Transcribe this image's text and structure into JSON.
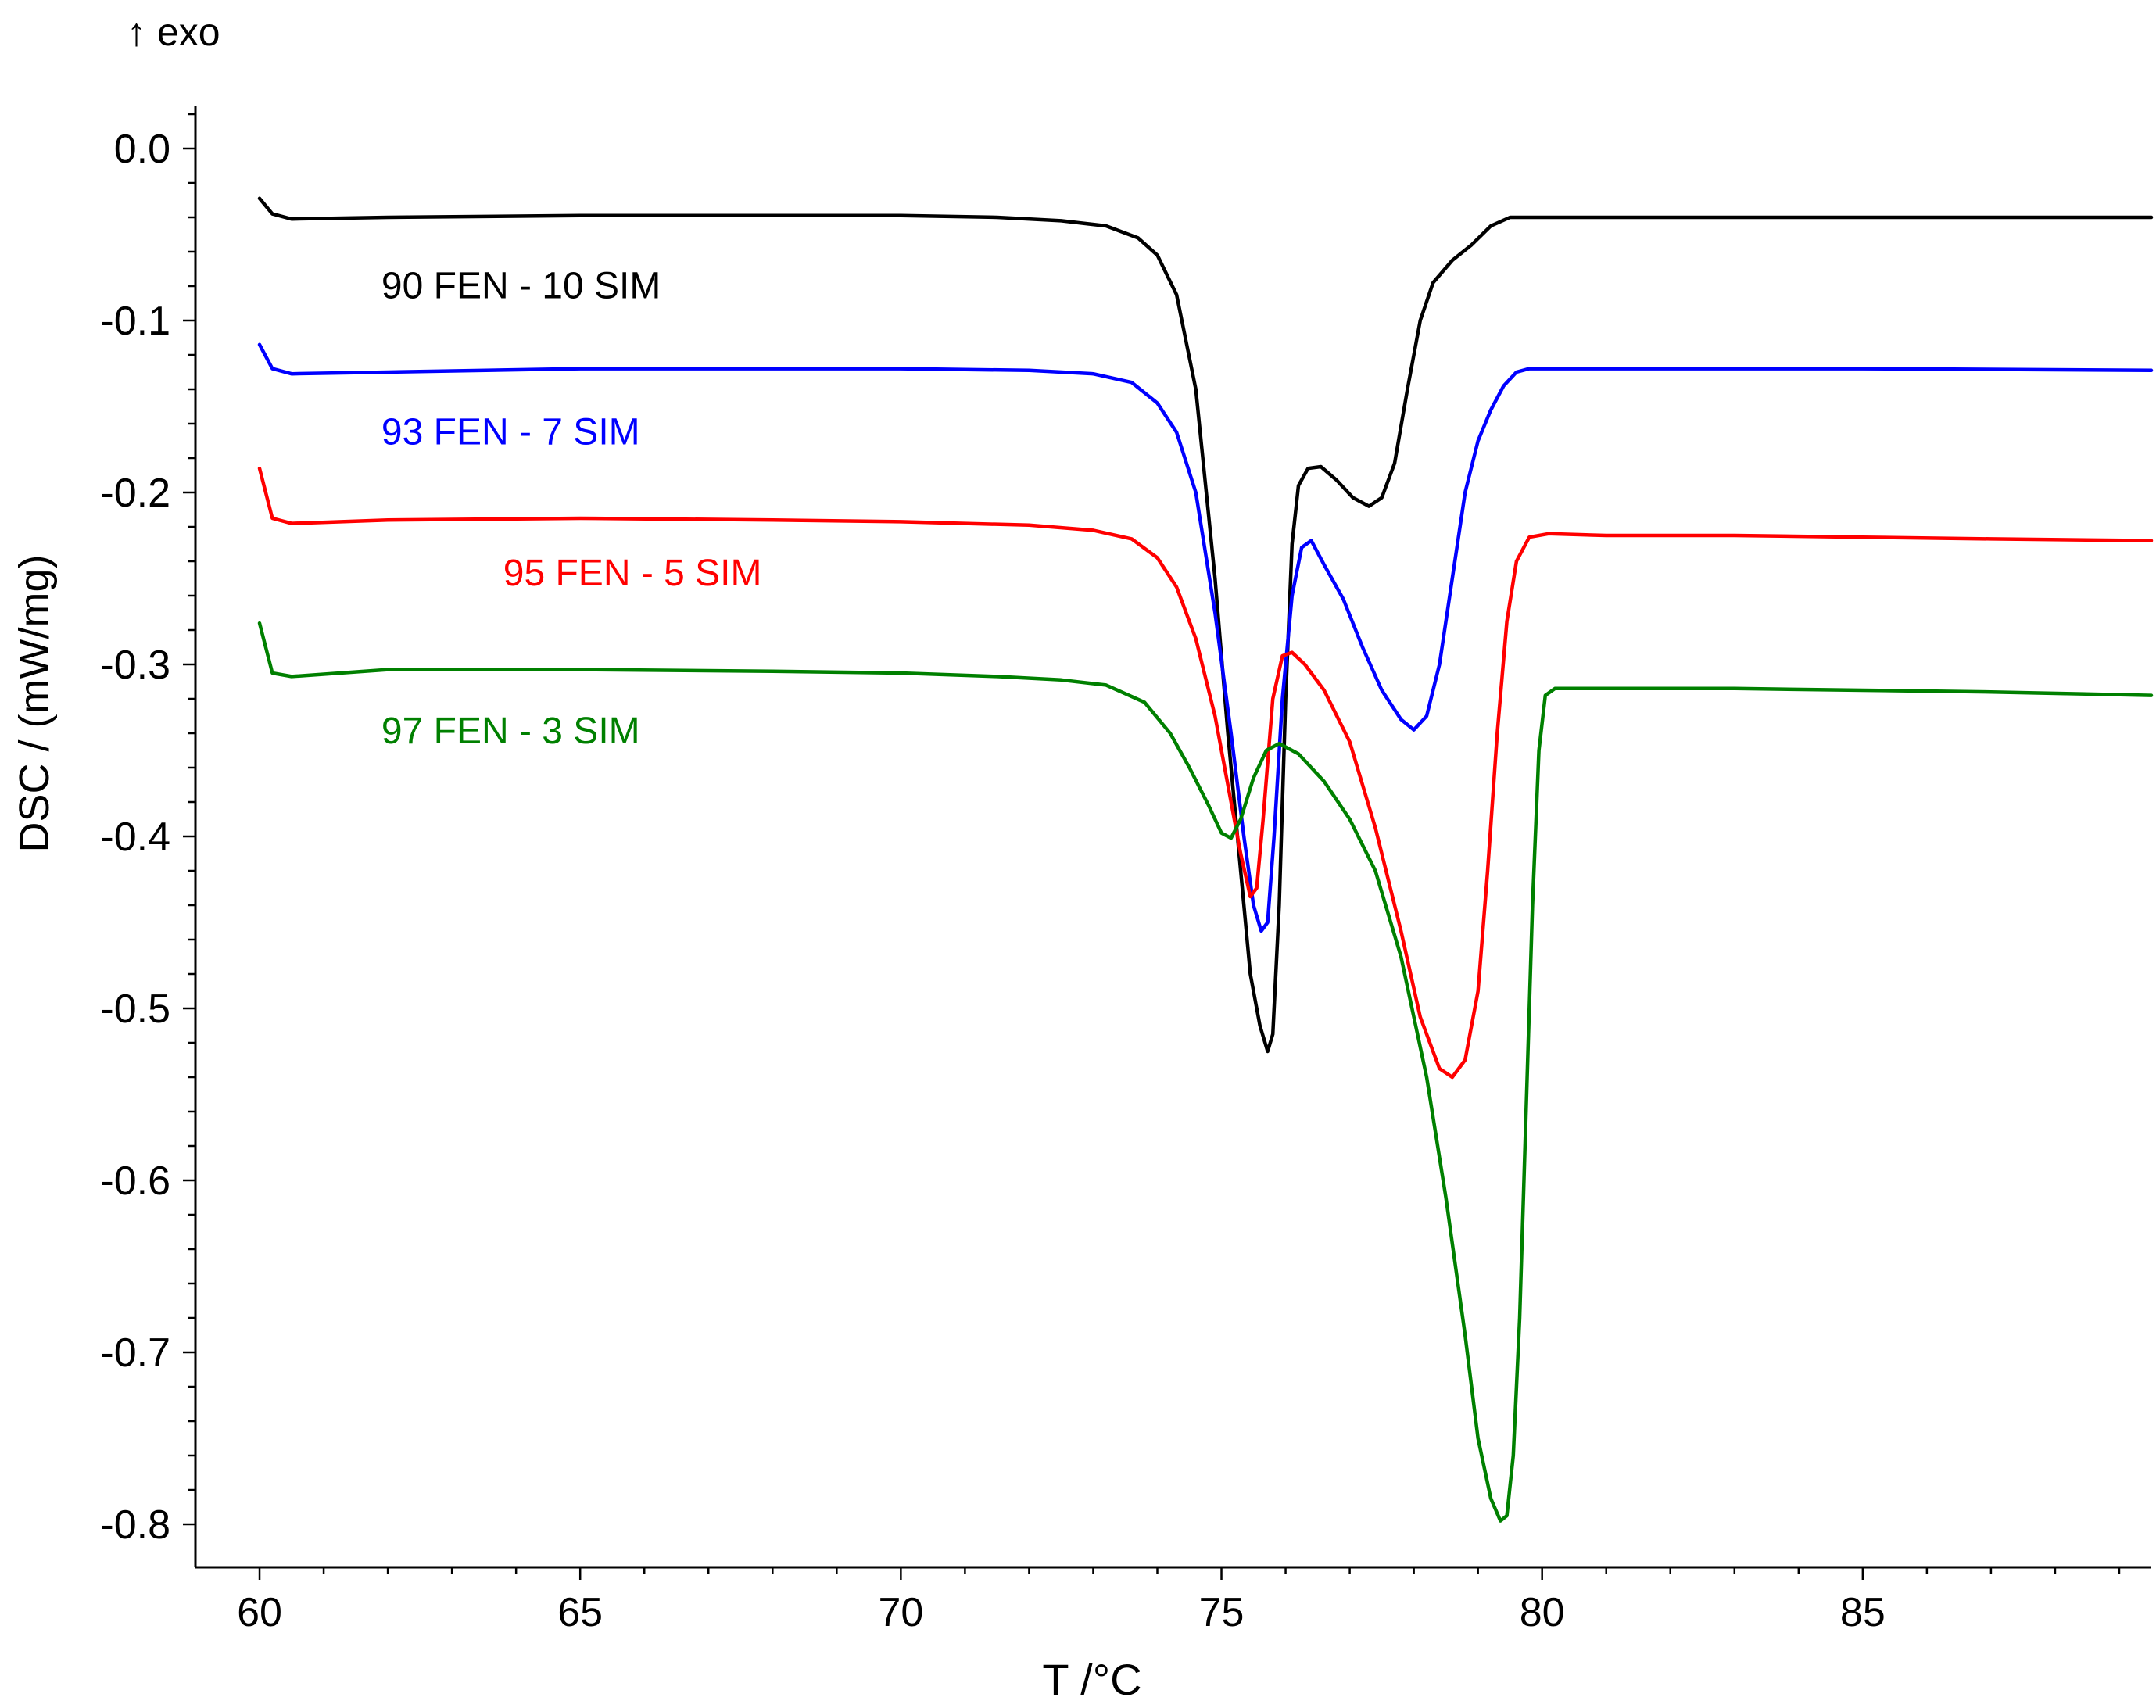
{
  "chart_data": {
    "type": "line",
    "title": "",
    "exo_label": "↑ exo",
    "xlabel": "T /°C",
    "ylabel": "DSC / (mW/mg)",
    "xlim": [
      59.0,
      89.5
    ],
    "ylim": [
      -0.825,
      0.025
    ],
    "x_ticks": [
      60,
      65,
      70,
      75,
      80,
      85
    ],
    "x_tick_labels": [
      "60",
      "65",
      "70",
      "75",
      "80",
      "85"
    ],
    "y_ticks": [
      0.0,
      -0.1,
      -0.2,
      -0.3,
      -0.4,
      -0.5,
      -0.6,
      -0.7,
      -0.8
    ],
    "y_tick_labels": [
      "0.0",
      "-0.1",
      "-0.2",
      "-0.3",
      "-0.4",
      "-0.5",
      "-0.6",
      "-0.7",
      "-0.8"
    ],
    "grid": false,
    "series": [
      {
        "name": "90 FEN - 10 SIM",
        "color": "#000000",
        "label_at": [
          61.9,
          -0.087
        ],
        "x": [
          60.0,
          60.2,
          60.5,
          62,
          65,
          68,
          70,
          71.5,
          72.5,
          73.2,
          73.7,
          74.0,
          74.3,
          74.6,
          74.9,
          75.1,
          75.3,
          75.45,
          75.6,
          75.72,
          75.8,
          75.9,
          76.0,
          76.1,
          76.2,
          76.35,
          76.55,
          76.8,
          77.05,
          77.3,
          77.5,
          77.7,
          77.9,
          78.1,
          78.3,
          78.6,
          78.9,
          79.2,
          79.5,
          80,
          82,
          85,
          89.5
        ],
        "y": [
          -0.029,
          -0.038,
          -0.041,
          -0.04,
          -0.039,
          -0.039,
          -0.039,
          -0.04,
          -0.042,
          -0.045,
          -0.052,
          -0.062,
          -0.085,
          -0.14,
          -0.25,
          -0.34,
          -0.42,
          -0.48,
          -0.51,
          -0.525,
          -0.515,
          -0.44,
          -0.32,
          -0.23,
          -0.196,
          -0.186,
          -0.185,
          -0.193,
          -0.203,
          -0.208,
          -0.203,
          -0.183,
          -0.14,
          -0.1,
          -0.078,
          -0.065,
          -0.056,
          -0.045,
          -0.04,
          -0.04,
          -0.04,
          -0.04,
          -0.04
        ]
      },
      {
        "name": "93 FEN - 7 SIM",
        "color": "#0000ff",
        "label_at": [
          61.9,
          -0.172
        ],
        "x": [
          60.0,
          60.2,
          60.5,
          62,
          65,
          68,
          70,
          72,
          73.0,
          73.6,
          74.0,
          74.3,
          74.6,
          74.9,
          75.15,
          75.35,
          75.5,
          75.62,
          75.72,
          75.82,
          75.95,
          76.1,
          76.25,
          76.4,
          76.6,
          76.9,
          77.2,
          77.5,
          77.8,
          78.0,
          78.2,
          78.4,
          78.6,
          78.8,
          79.0,
          79.2,
          79.4,
          79.6,
          79.8,
          80.2,
          82,
          85,
          89.5
        ],
        "y": [
          -0.114,
          -0.128,
          -0.131,
          -0.13,
          -0.128,
          -0.128,
          -0.128,
          -0.129,
          -0.131,
          -0.136,
          -0.148,
          -0.165,
          -0.2,
          -0.27,
          -0.34,
          -0.4,
          -0.44,
          -0.455,
          -0.45,
          -0.4,
          -0.32,
          -0.26,
          -0.232,
          -0.228,
          -0.242,
          -0.262,
          -0.29,
          -0.315,
          -0.332,
          -0.338,
          -0.33,
          -0.3,
          -0.25,
          -0.2,
          -0.17,
          -0.152,
          -0.138,
          -0.13,
          -0.128,
          -0.128,
          -0.128,
          -0.128,
          -0.129
        ]
      },
      {
        "name": "95 FEN - 5 SIM",
        "color": "#ff0000",
        "label_at": [
          63.8,
          -0.254
        ],
        "x": [
          60.0,
          60.2,
          60.5,
          62,
          65,
          68,
          70,
          72,
          73.0,
          73.6,
          74.0,
          74.3,
          74.6,
          74.9,
          75.1,
          75.3,
          75.45,
          75.55,
          75.65,
          75.8,
          75.95,
          76.1,
          76.3,
          76.6,
          77.0,
          77.4,
          77.8,
          78.1,
          78.4,
          78.6,
          78.8,
          79.0,
          79.15,
          79.3,
          79.45,
          79.6,
          79.8,
          80.1,
          81,
          83,
          85,
          87,
          89.5
        ],
        "y": [
          -0.186,
          -0.215,
          -0.218,
          -0.216,
          -0.215,
          -0.216,
          -0.217,
          -0.219,
          -0.222,
          -0.227,
          -0.238,
          -0.255,
          -0.285,
          -0.33,
          -0.37,
          -0.41,
          -0.435,
          -0.43,
          -0.39,
          -0.32,
          -0.295,
          -0.293,
          -0.3,
          -0.315,
          -0.345,
          -0.395,
          -0.455,
          -0.505,
          -0.535,
          -0.54,
          -0.53,
          -0.49,
          -0.42,
          -0.34,
          -0.275,
          -0.24,
          -0.226,
          -0.224,
          -0.225,
          -0.225,
          -0.226,
          -0.227,
          -0.228
        ]
      },
      {
        "name": "97 FEN - 3 SIM",
        "color": "#008000",
        "label_at": [
          61.9,
          -0.346
        ],
        "x": [
          60.0,
          60.2,
          60.5,
          62,
          65,
          68,
          70,
          71.5,
          72.5,
          73.2,
          73.8,
          74.2,
          74.5,
          74.8,
          75.0,
          75.15,
          75.3,
          75.5,
          75.7,
          75.9,
          76.2,
          76.6,
          77.0,
          77.4,
          77.8,
          78.2,
          78.5,
          78.8,
          79.0,
          79.2,
          79.35,
          79.45,
          79.55,
          79.65,
          79.75,
          79.85,
          79.95,
          80.05,
          80.2,
          81,
          83,
          85,
          87,
          89.5
        ],
        "y": [
          -0.276,
          -0.305,
          -0.307,
          -0.303,
          -0.303,
          -0.304,
          -0.305,
          -0.307,
          -0.309,
          -0.312,
          -0.322,
          -0.34,
          -0.36,
          -0.382,
          -0.398,
          -0.401,
          -0.39,
          -0.366,
          -0.35,
          -0.346,
          -0.352,
          -0.368,
          -0.39,
          -0.42,
          -0.47,
          -0.54,
          -0.61,
          -0.69,
          -0.75,
          -0.785,
          -0.798,
          -0.795,
          -0.76,
          -0.68,
          -0.56,
          -0.44,
          -0.35,
          -0.318,
          -0.314,
          -0.314,
          -0.314,
          -0.315,
          -0.316,
          -0.318
        ]
      }
    ]
  }
}
